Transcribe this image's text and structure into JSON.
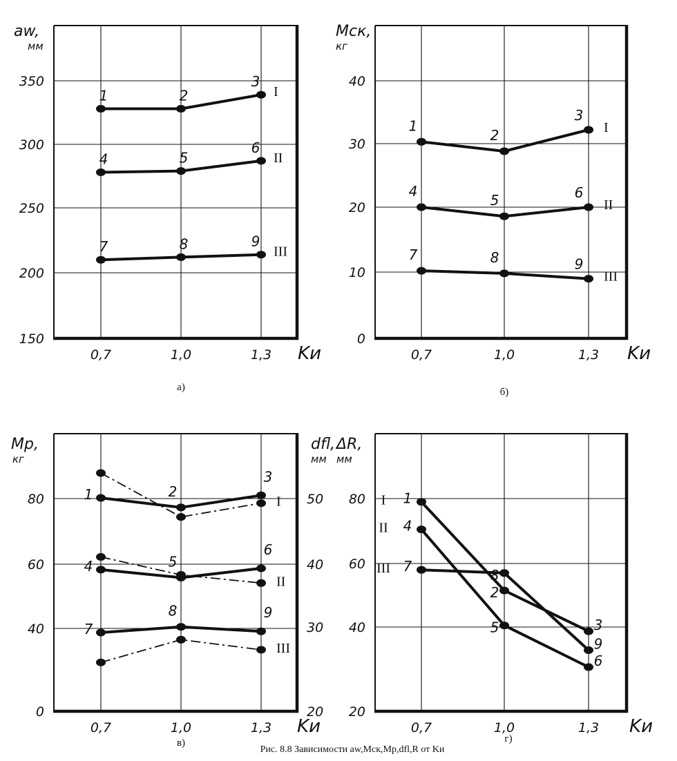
{
  "caption": {
    "text": "Рис. 8.8  Зависимости aw,Mск,Mр,dfl,R от Kи"
  },
  "colors": {
    "ink": "#111111",
    "grid": "#222222",
    "background": "#ffffff"
  },
  "chart_data": [
    {
      "id": "a",
      "type": "line",
      "sublabel": "а)",
      "ylabel": "aw,",
      "yunit": "мм",
      "xlabel": "Kи",
      "x": [
        0.7,
        1.0,
        1.3
      ],
      "xticks": [
        "0,7",
        "1,0",
        "1,3"
      ],
      "ylim": [
        150,
        350
      ],
      "yticks": [
        150,
        200,
        250,
        300,
        350
      ],
      "yticklabels": [
        "150",
        "200",
        "250",
        "300",
        "350"
      ],
      "grid": true,
      "series": [
        {
          "name": "I",
          "values": [
            328,
            328,
            339
          ],
          "points": [
            "1",
            "2",
            "3"
          ],
          "style": "solid"
        },
        {
          "name": "II",
          "values": [
            278,
            279,
            287
          ],
          "points": [
            "4",
            "5",
            "6"
          ],
          "style": "solid"
        },
        {
          "name": "III",
          "values": [
            210,
            212,
            214
          ],
          "points": [
            "7",
            "8",
            "9"
          ],
          "style": "solid"
        }
      ]
    },
    {
      "id": "b",
      "type": "line",
      "sublabel": "б)",
      "ylabel": "Mск,",
      "yunit": "кг",
      "xlabel": "Kи",
      "x": [
        0.7,
        1.0,
        1.3
      ],
      "xticks": [
        "0,7",
        "1,0",
        "1,3"
      ],
      "ylim": [
        0,
        40
      ],
      "yticks": [
        0,
        10,
        20,
        30,
        40
      ],
      "yticklabels": [
        "0",
        "10",
        "20",
        "30",
        "40"
      ],
      "grid": true,
      "series": [
        {
          "name": "I",
          "values": [
            30.3,
            28.8,
            32.2
          ],
          "points": [
            "1",
            "2",
            "3"
          ],
          "style": "solid"
        },
        {
          "name": "II",
          "values": [
            20.0,
            18.6,
            20.0
          ],
          "points": [
            "4",
            "5",
            "6"
          ],
          "style": "solid"
        },
        {
          "name": "III",
          "values": [
            10.2,
            9.8,
            9.0
          ],
          "points": [
            "7",
            "8",
            "9"
          ],
          "style": "solid"
        }
      ]
    },
    {
      "id": "v",
      "type": "line",
      "sublabel": "в)",
      "ylabel": "Mр,",
      "yunit": "кг",
      "y2label": "dfl,",
      "y2unit": "мм",
      "xlabel": "Kи",
      "x": [
        0.7,
        1.0,
        1.3
      ],
      "xticks": [
        "0,7",
        "1,0",
        "1,3"
      ],
      "ylim": [
        0,
        100
      ],
      "yticks": [
        0,
        40,
        60,
        80
      ],
      "yticklabels": [
        "0",
        "40",
        "60",
        "80"
      ],
      "y2lim": [
        20,
        60
      ],
      "y2ticks": [
        20,
        30,
        40,
        50
      ],
      "y2ticklabels": [
        "20",
        "30",
        "40",
        "50"
      ],
      "grid": true,
      "series": [
        {
          "name": "I",
          "values": [
            80.2,
            77.3,
            81.0
          ],
          "points": [
            "1",
            "2",
            "3"
          ],
          "style": "solid",
          "axis": "left"
        },
        {
          "name": "II",
          "values": [
            58.3,
            55.8,
            58.7
          ],
          "points": [
            "4",
            "5",
            "6"
          ],
          "style": "solid",
          "axis": "left"
        },
        {
          "name": "III",
          "values": [
            38.0,
            40.5,
            38.6
          ],
          "points": [
            "7",
            "8",
            "9"
          ],
          "style": "solid",
          "axis": "left"
        },
        {
          "name": "I",
          "values": [
            53.9,
            47.2,
            49.3
          ],
          "style": "dashdot",
          "axis": "right"
        },
        {
          "name": "II",
          "values": [
            41.1,
            38.3,
            37.0
          ],
          "style": "dashdot",
          "axis": "right"
        },
        {
          "name": "III",
          "values": [
            25.8,
            28.5,
            27.3
          ],
          "style": "dashdot",
          "axis": "right"
        }
      ]
    },
    {
      "id": "g",
      "type": "line",
      "sublabel": "г)",
      "ylabel": "ΔR,",
      "yunit": "мм",
      "xlabel": "Kи",
      "x": [
        0.7,
        1.0,
        1.3
      ],
      "xticks": [
        "0,7",
        "1,0",
        "1,3"
      ],
      "ylim": [
        20,
        100
      ],
      "yticks": [
        20,
        40,
        60,
        80
      ],
      "yticklabels": [
        "20",
        "40",
        "60",
        "80"
      ],
      "grid": true,
      "series": [
        {
          "name": "I",
          "values": [
            79.0,
            51.5,
            39.0
          ],
          "points": [
            "1",
            "2",
            "3"
          ],
          "style": "solid"
        },
        {
          "name": "II",
          "values": [
            70.5,
            40.5,
            30.5
          ],
          "points": [
            "4",
            "5",
            "6"
          ],
          "style": "solid"
        },
        {
          "name": "III",
          "values": [
            58.0,
            57.0,
            34.5
          ],
          "points": [
            "7",
            "8",
            "9"
          ],
          "style": "solid"
        }
      ]
    }
  ]
}
